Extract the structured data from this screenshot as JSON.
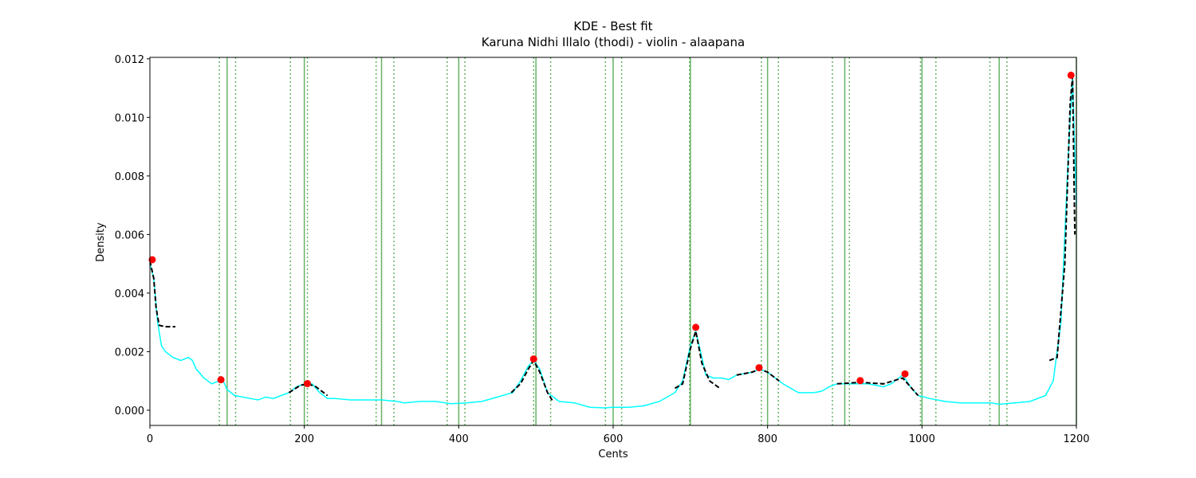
{
  "chart_data": {
    "type": "line",
    "title": "KDE - Best fit",
    "subtitle": "Karuna Nidhi Illalo (thodi) - violin - alaapana",
    "x_label": "Cents",
    "y_label": "Density",
    "xlim": [
      0,
      1200
    ],
    "ylim": [
      -0.00052,
      0.01205
    ],
    "xticks": [
      0,
      200,
      400,
      600,
      800,
      1000,
      1200
    ],
    "yticks": [
      {
        "value": 0,
        "label": "0.000"
      },
      {
        "value": 0.002,
        "label": "0.002"
      },
      {
        "value": 0.004,
        "label": "0.004"
      },
      {
        "value": 0.006,
        "label": "0.006"
      },
      {
        "value": 0.008,
        "label": "0.008"
      },
      {
        "value": 0.01,
        "label": "0.010"
      },
      {
        "value": 0.012,
        "label": "0.012"
      }
    ],
    "reference_color": "green",
    "solid_lines": [
      100,
      200,
      300,
      400,
      500,
      600,
      700,
      800,
      900,
      1000,
      1100,
      1200
    ],
    "dotted_lines": [
      90,
      111,
      182,
      204,
      293,
      316,
      385,
      408,
      497,
      519,
      590,
      611,
      699,
      792,
      814,
      884,
      906,
      998,
      1018,
      1088,
      1110
    ],
    "series": [
      {
        "style": "solid",
        "color": "#00ffff",
        "x": [
          0,
          5,
          10,
          15,
          20,
          30,
          40,
          50,
          55,
          60,
          70,
          80,
          90,
          95,
          100,
          110,
          130,
          140,
          150,
          160,
          170,
          180,
          190,
          200,
          210,
          220,
          230,
          240,
          260,
          300,
          320,
          330,
          350,
          370,
          390,
          410,
          430,
          450,
          470,
          480,
          490,
          497,
          505,
          515,
          530,
          550,
          570,
          590,
          600,
          620,
          640,
          660,
          680,
          690,
          700,
          707,
          715,
          720,
          730,
          740,
          750,
          760,
          780,
          790,
          800,
          820,
          840,
          860,
          870,
          880,
          890,
          910,
          930,
          950,
          960,
          975,
          985,
          995,
          1010,
          1030,
          1050,
          1070,
          1090,
          1100,
          1120,
          1140,
          1160,
          1170,
          1180,
          1190,
          1195,
          1200
        ],
        "values": [
          0.005,
          0.0045,
          0.003,
          0.0022,
          0.002,
          0.0018,
          0.0017,
          0.0018,
          0.0017,
          0.0014,
          0.0011,
          0.0009,
          0.001,
          0.001,
          0.0007,
          0.0005,
          0.0004,
          0.00035,
          0.00045,
          0.0004,
          0.0005,
          0.0006,
          0.0008,
          0.0009,
          0.0009,
          0.0006,
          0.0004,
          0.0004,
          0.00035,
          0.00035,
          0.0003,
          0.00025,
          0.0003,
          0.0003,
          0.00022,
          0.00025,
          0.0003,
          0.00045,
          0.0006,
          0.001,
          0.0015,
          0.0017,
          0.0014,
          0.0006,
          0.0003,
          0.00025,
          0.0001,
          8e-05,
          0.0001,
          0.0001,
          0.00015,
          0.0003,
          0.0006,
          0.001,
          0.0022,
          0.0027,
          0.0018,
          0.0012,
          0.0011,
          0.0011,
          0.00105,
          0.0012,
          0.0013,
          0.0014,
          0.0013,
          0.0009,
          0.0006,
          0.0006,
          0.00065,
          0.0008,
          0.0009,
          0.0009,
          0.0009,
          0.0008,
          0.0009,
          0.0012,
          0.0008,
          0.0005,
          0.0004,
          0.0003,
          0.00025,
          0.00025,
          0.00025,
          0.0002,
          0.00025,
          0.0003,
          0.0005,
          0.001,
          0.003,
          0.009,
          0.0114,
          0.007
        ]
      },
      {
        "style": "dashed",
        "color": "#000000",
        "x": [
          0,
          5,
          8,
          12,
          20,
          33,
          100,
          180,
          195,
          205,
          215,
          230,
          300,
          468,
          480,
          490,
          497,
          505,
          515,
          522,
          600,
          680,
          690,
          700,
          707,
          715,
          725,
          738,
          750,
          760,
          780,
          790,
          800,
          815,
          850,
          890,
          920,
          950,
          975,
          985,
          995,
          1100,
          1165,
          1175,
          1185,
          1192,
          1195,
          1198
        ],
        "values": [
          0.0051,
          0.0045,
          0.0035,
          0.0029,
          0.00285,
          0.00285,
          null,
          0.0006,
          0.00085,
          0.0009,
          0.0008,
          0.0005,
          null,
          0.0006,
          0.0009,
          0.0014,
          0.0017,
          0.0013,
          0.0006,
          0.0003,
          null,
          0.00075,
          0.0009,
          0.0021,
          0.0027,
          0.0016,
          0.001,
          0.00075,
          null,
          0.0012,
          0.0013,
          0.0014,
          0.0013,
          0.001,
          null,
          0.0009,
          0.00095,
          0.0009,
          0.0011,
          0.0008,
          0.0005,
          null,
          0.0017,
          0.0018,
          0.005,
          0.0105,
          0.0114,
          0.006
        ]
      }
    ],
    "peaks": {
      "color": "#ff0000",
      "x": [
        3,
        92,
        204,
        497,
        707,
        789,
        920,
        978,
        1193
      ],
      "values": [
        0.00514,
        0.00104,
        0.00091,
        0.00175,
        0.00283,
        0.00145,
        0.00101,
        0.00124,
        0.01144
      ]
    }
  }
}
